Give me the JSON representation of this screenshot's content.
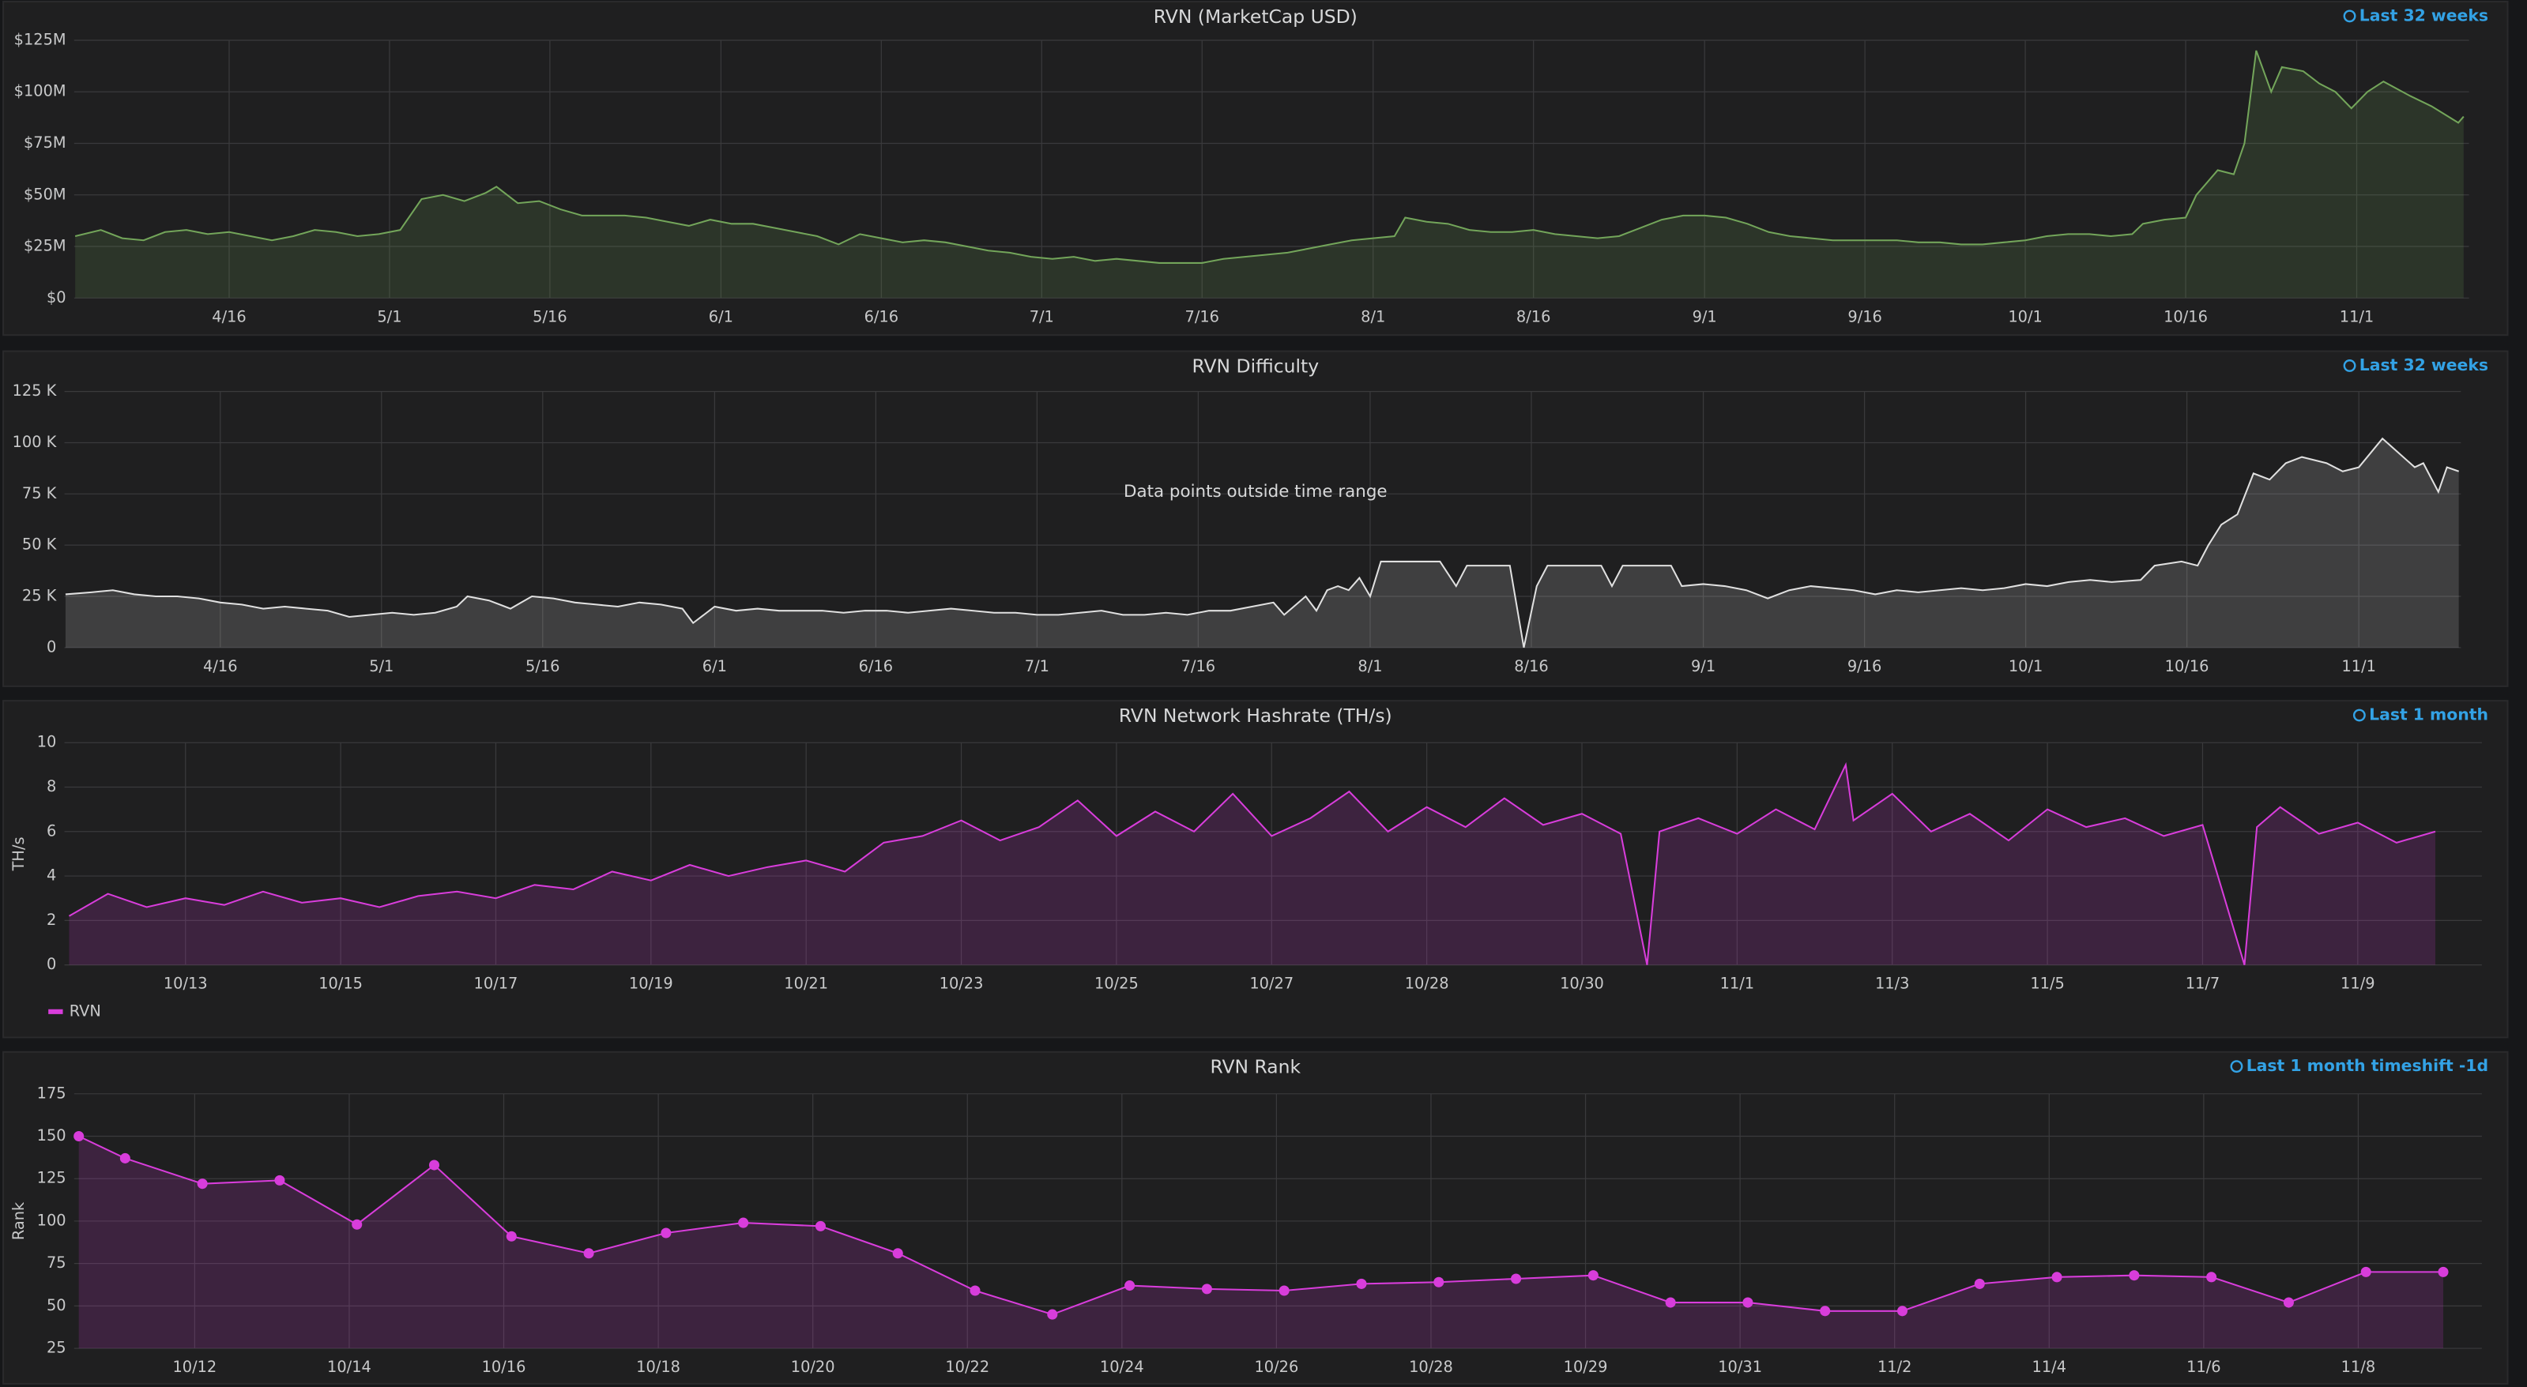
{
  "chart_data": [
    {
      "type": "line",
      "title": "RVN (MarketCap USD)",
      "time_range": "Last 32 weeks",
      "color": "#73a55a",
      "fill": true,
      "xlim": [
        91.5,
        315.5
      ],
      "xticks": [
        {
          "value": 106,
          "label": "4/16"
        },
        {
          "value": 121,
          "label": "5/1"
        },
        {
          "value": 136,
          "label": "5/16"
        },
        {
          "value": 152,
          "label": "6/1"
        },
        {
          "value": 167,
          "label": "6/16"
        },
        {
          "value": 182,
          "label": "7/1"
        },
        {
          "value": 197,
          "label": "7/16"
        },
        {
          "value": 213,
          "label": "8/1"
        },
        {
          "value": 228,
          "label": "8/16"
        },
        {
          "value": 244,
          "label": "9/1"
        },
        {
          "value": 259,
          "label": "9/16"
        },
        {
          "value": 274,
          "label": "10/1"
        },
        {
          "value": 289,
          "label": "10/16"
        },
        {
          "value": 305,
          "label": "11/1"
        }
      ],
      "ylim": [
        0,
        125
      ],
      "yticks": [
        {
          "value": 0,
          "label": "$0"
        },
        {
          "value": 25,
          "label": "$25M"
        },
        {
          "value": 50,
          "label": "$50M"
        },
        {
          "value": 75,
          "label": "$75M"
        },
        {
          "value": 100,
          "label": "$100M"
        },
        {
          "value": 125,
          "label": "$125M"
        }
      ],
      "grid": true,
      "x": [
        91.6,
        94,
        96,
        98,
        100,
        102,
        104,
        106,
        108,
        110,
        112,
        114,
        116,
        118,
        120,
        122,
        124,
        126,
        128,
        130,
        131,
        133,
        135,
        137,
        139,
        141,
        143,
        145,
        147,
        149,
        151,
        153,
        155,
        157,
        159,
        161,
        163,
        165,
        167,
        169,
        171,
        173,
        175,
        177,
        179,
        181,
        183,
        185,
        187,
        189,
        191,
        193,
        195,
        197,
        199,
        201,
        203,
        205,
        207,
        209,
        211,
        213,
        215,
        216,
        218,
        220,
        222,
        224,
        226,
        228,
        230,
        232,
        234,
        236,
        238,
        240,
        242,
        244,
        246,
        248,
        250,
        252,
        254,
        256,
        258,
        260,
        262,
        264,
        266,
        268,
        270,
        272,
        274,
        276,
        278,
        280,
        282,
        284,
        285,
        287,
        289,
        290,
        292,
        293.5,
        294.5,
        295.6,
        297,
        298,
        300,
        301.5,
        303,
        304.5,
        306,
        307.5,
        310,
        312,
        314.5,
        315
      ],
      "values": [
        30,
        33,
        29,
        28,
        32,
        33,
        31,
        32,
        30,
        28,
        30,
        33,
        32,
        30,
        31,
        33,
        48,
        50,
        47,
        51,
        54,
        46,
        47,
        43,
        40,
        40,
        40,
        39,
        37,
        35,
        38,
        36,
        36,
        34,
        32,
        30,
        26,
        31,
        29,
        27,
        28,
        27,
        25,
        23,
        22,
        20,
        19,
        20,
        18,
        19,
        18,
        17,
        17,
        17,
        19,
        20,
        21,
        22,
        24,
        26,
        28,
        29,
        30,
        39,
        37,
        36,
        33,
        32,
        32,
        33,
        31,
        30,
        29,
        30,
        34,
        38,
        40,
        40,
        39,
        36,
        32,
        30,
        29,
        28,
        28,
        28,
        28,
        27,
        27,
        26,
        26,
        27,
        28,
        30,
        31,
        31,
        30,
        31,
        36,
        38,
        39,
        50,
        62,
        60,
        75,
        120,
        100,
        112,
        110,
        104,
        100,
        92,
        100,
        105,
        98,
        93,
        85,
        88
      ]
    },
    {
      "type": "line",
      "title": "RVN Difficulty",
      "time_range": "Last 32 weeks",
      "annotation": "Data points outside time range",
      "color": "#e0e0e0",
      "fill": true,
      "xlim": [
        91.5,
        314.5
      ],
      "xticks": [
        {
          "value": 106,
          "label": "4/16"
        },
        {
          "value": 121,
          "label": "5/1"
        },
        {
          "value": 136,
          "label": "5/16"
        },
        {
          "value": 152,
          "label": "6/1"
        },
        {
          "value": 167,
          "label": "6/16"
        },
        {
          "value": 182,
          "label": "7/1"
        },
        {
          "value": 197,
          "label": "7/16"
        },
        {
          "value": 213,
          "label": "8/1"
        },
        {
          "value": 228,
          "label": "8/16"
        },
        {
          "value": 244,
          "label": "9/1"
        },
        {
          "value": 259,
          "label": "9/16"
        },
        {
          "value": 274,
          "label": "10/1"
        },
        {
          "value": 289,
          "label": "10/16"
        },
        {
          "value": 305,
          "label": "11/1"
        }
      ],
      "ylim": [
        0,
        125
      ],
      "yticks": [
        0,
        {
          "value": 25,
          "label": "25 K"
        },
        {
          "value": 50,
          "label": "50 K"
        },
        {
          "value": 75,
          "label": "75 K"
        },
        {
          "value": 100,
          "label": "100 K"
        },
        {
          "value": 125,
          "label": "125 K"
        }
      ],
      "grid": true,
      "x": [
        91.6,
        94,
        96,
        98,
        100,
        102,
        104,
        106,
        108,
        110,
        112,
        114,
        116,
        118,
        120,
        122,
        124,
        126,
        128,
        129,
        131,
        133,
        135,
        137,
        139,
        141,
        143,
        145,
        147,
        149,
        150,
        152,
        154,
        156,
        158,
        160,
        162,
        164,
        166,
        168,
        170,
        172,
        174,
        176,
        178,
        180,
        182,
        184,
        186,
        188,
        190,
        192,
        194,
        196,
        198,
        200,
        202,
        204,
        205,
        207,
        208,
        209,
        210,
        211,
        212,
        213,
        214,
        219.5,
        221,
        222,
        226,
        227.3,
        228.5,
        229.5,
        234.5,
        235.5,
        236.5,
        241,
        242,
        244,
        246,
        248,
        250,
        252,
        254,
        256,
        258,
        260,
        262,
        264,
        266,
        268,
        270,
        272,
        274,
        276,
        278,
        280,
        282,
        284.7,
        286,
        288.5,
        290,
        291,
        292.2,
        293.7,
        295.2,
        296.7,
        298.2,
        299.7,
        302,
        303.5,
        305,
        307.2,
        308.7,
        310.2,
        311,
        312.4,
        313.2,
        314.3
      ],
      "values": [
        26,
        27,
        28,
        26,
        25,
        25,
        24,
        22,
        21,
        19,
        20,
        19,
        18,
        15,
        16,
        17,
        16,
        17,
        20,
        25,
        23,
        19,
        25,
        24,
        22,
        21,
        20,
        22,
        21,
        19,
        12,
        20,
        18,
        19,
        18,
        18,
        18,
        17,
        18,
        18,
        17,
        18,
        19,
        18,
        17,
        17,
        16,
        16,
        17,
        18,
        16,
        16,
        17,
        16,
        18,
        18,
        20,
        22,
        16,
        25,
        18,
        28,
        30,
        28,
        34,
        25,
        42,
        42,
        30,
        40,
        40,
        0,
        30,
        40,
        40,
        30,
        40,
        40,
        30,
        31,
        30,
        28,
        24,
        28,
        30,
        29,
        28,
        26,
        28,
        27,
        28,
        29,
        28,
        29,
        31,
        30,
        32,
        33,
        32,
        33,
        40,
        42,
        40,
        50,
        60,
        65,
        85,
        82,
        90,
        93,
        90,
        86,
        88,
        102,
        95,
        88,
        90,
        76,
        88,
        86
      ]
    },
    {
      "type": "line",
      "title": "RVN Network Hashrate (TH/s)",
      "time_range": "Last 1 month",
      "ylabel": "TH/s",
      "fill": true,
      "xlim": [
        284.44,
        315.6
      ],
      "xticks": [
        {
          "value": 286,
          "label": "10/13"
        },
        {
          "value": 288,
          "label": "10/15"
        },
        {
          "value": 290,
          "label": "10/17"
        },
        {
          "value": 292,
          "label": "10/19"
        },
        {
          "value": 294,
          "label": "10/21"
        },
        {
          "value": 296,
          "label": "10/23"
        },
        {
          "value": 298,
          "label": "10/25"
        },
        {
          "value": 300,
          "label": "10/27"
        },
        {
          "value": 302,
          "label": "10/28"
        },
        {
          "value": 304,
          "label": "10/30"
        },
        {
          "value": 306,
          "label": "11/1"
        },
        {
          "value": 308,
          "label": "11/3"
        },
        {
          "value": 310,
          "label": "11/5"
        },
        {
          "value": 312,
          "label": "11/7"
        },
        {
          "value": 314,
          "label": "11/9"
        }
      ],
      "ylim": [
        0,
        10
      ],
      "yticks": [
        0,
        2,
        4,
        6,
        8,
        10
      ],
      "grid": true,
      "legend": "bottom-left",
      "x": [
        284.5,
        285,
        285.5,
        286,
        286.5,
        287,
        287.5,
        288,
        288.5,
        289,
        289.5,
        290,
        290.5,
        291,
        291.5,
        292,
        292.5,
        293,
        293.5,
        294,
        294.5,
        295,
        295.5,
        296,
        296.5,
        297,
        297.5,
        298,
        298.5,
        299,
        299.5,
        300,
        300.5,
        301,
        301.5,
        302,
        302.5,
        303,
        303.5,
        304,
        304.5,
        304.84,
        305,
        305.5,
        306,
        306.5,
        307,
        307.4,
        307.5,
        308,
        308.5,
        309,
        309.5,
        310,
        310.5,
        311,
        311.5,
        312,
        312.54,
        312.7,
        313,
        313.5,
        314,
        314.5,
        315
      ],
      "series": [
        {
          "name": "RVN",
          "color": "#d83ddb",
          "values": [
            2.2,
            3.2,
            2.6,
            3.0,
            2.7,
            3.3,
            2.8,
            3.0,
            2.6,
            3.1,
            3.3,
            3.0,
            3.6,
            3.4,
            4.2,
            3.8,
            4.5,
            4.0,
            4.4,
            4.7,
            4.2,
            5.5,
            5.8,
            6.5,
            5.6,
            6.2,
            7.4,
            5.8,
            6.9,
            6.0,
            7.7,
            5.8,
            6.6,
            7.8,
            6.0,
            7.1,
            6.2,
            7.5,
            6.3,
            6.8,
            5.9,
            0,
            6.0,
            6.6,
            5.9,
            7.0,
            6.1,
            9.0,
            6.5,
            7.7,
            6.0,
            6.8,
            5.6,
            7.0,
            6.2,
            6.6,
            5.8,
            6.3,
            0,
            6.2,
            7.1,
            5.9,
            6.4,
            5.5,
            6.0
          ]
        }
      ]
    },
    {
      "type": "line",
      "title": "RVN Rank",
      "time_range": "Last 1 month timeshift -1d",
      "ylabel": "Rank",
      "color": "#d83ddb",
      "fill": true,
      "points": true,
      "xlim": [
        283.44,
        314.6
      ],
      "xticks": [
        {
          "value": 285,
          "label": "10/12"
        },
        {
          "value": 287,
          "label": "10/14"
        },
        {
          "value": 289,
          "label": "10/16"
        },
        {
          "value": 291,
          "label": "10/18"
        },
        {
          "value": 293,
          "label": "10/20"
        },
        {
          "value": 295,
          "label": "10/22"
        },
        {
          "value": 297,
          "label": "10/24"
        },
        {
          "value": 299,
          "label": "10/26"
        },
        {
          "value": 301,
          "label": "10/28"
        },
        {
          "value": 303,
          "label": "10/29"
        },
        {
          "value": 305,
          "label": "10/31"
        },
        {
          "value": 307,
          "label": "11/2"
        },
        {
          "value": 309,
          "label": "11/4"
        },
        {
          "value": 311,
          "label": "11/6"
        },
        {
          "value": 313,
          "label": "11/8"
        }
      ],
      "ylim": [
        25,
        175
      ],
      "yticks": [
        25,
        50,
        75,
        100,
        125,
        150,
        175
      ],
      "grid": true,
      "x": [
        283.5,
        284.1,
        285.1,
        286.1,
        287.1,
        288.1,
        289.1,
        290.1,
        291.1,
        292.1,
        293.1,
        294.1,
        295.1,
        296.1,
        297.1,
        298.1,
        299.1,
        300.1,
        301.1,
        302.1,
        303.1,
        304.1,
        305.1,
        306.1,
        307.1,
        308.1,
        309.1,
        310.1,
        311.1,
        312.1,
        313.1,
        314.1
      ],
      "values": [
        150,
        137,
        122,
        124,
        98,
        133,
        91,
        81,
        93,
        99,
        97,
        81,
        59,
        45,
        62,
        60,
        59,
        63,
        64,
        66,
        68,
        52,
        52,
        47,
        47,
        63,
        67,
        68,
        67,
        52,
        70,
        70
      ]
    }
  ]
}
